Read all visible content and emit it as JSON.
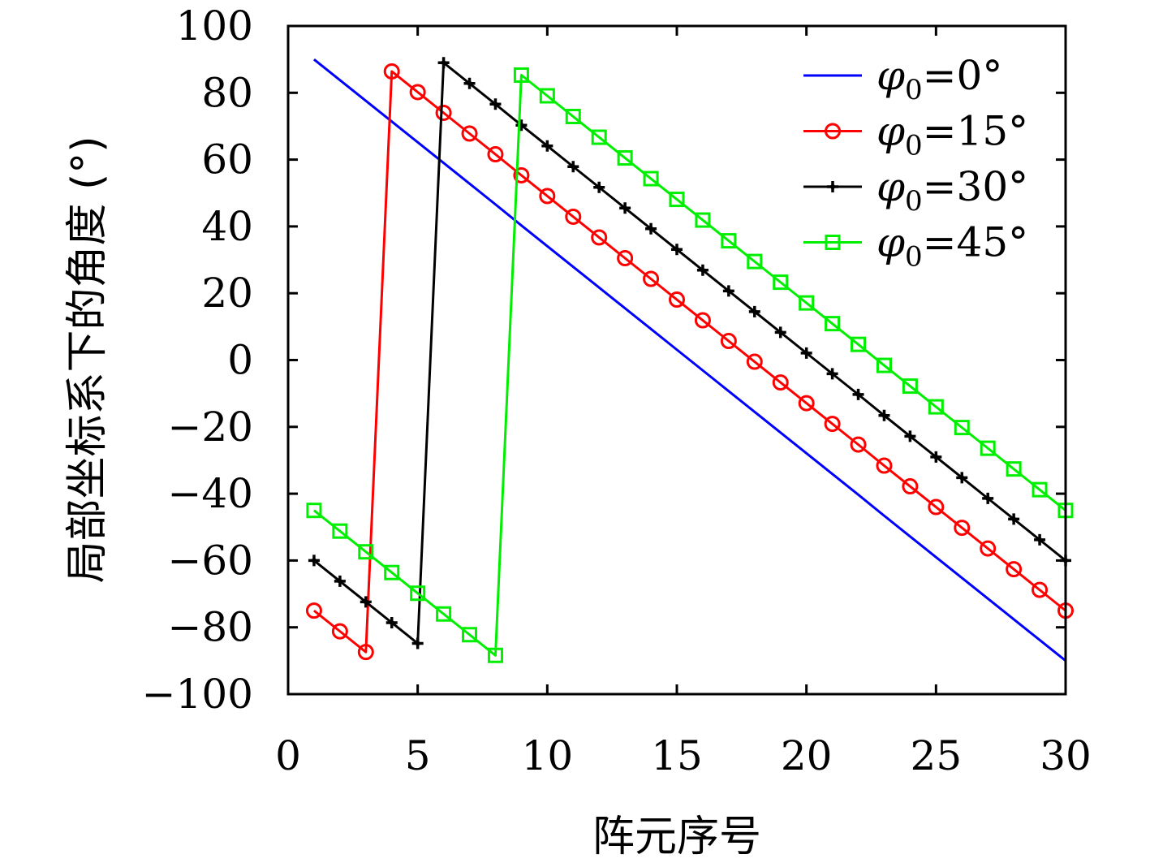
{
  "chart_data": {
    "type": "line",
    "xlabel": "阵元序号",
    "ylabel": "局部坐标系下的角度 (°)",
    "xlim": [
      0,
      30
    ],
    "ylim": [
      -100,
      100
    ],
    "xticks": [
      0,
      5,
      10,
      15,
      20,
      25,
      30
    ],
    "yticks": [
      -100,
      -80,
      -60,
      -40,
      -20,
      0,
      20,
      40,
      60,
      80,
      100
    ],
    "grid": false,
    "legend_position": "top-right",
    "series": [
      {
        "name": "φ0=0°",
        "legend_main": "φ",
        "legend_sub": "0",
        "legend_rest": "=0°",
        "color": "#0000ff",
        "marker": "none",
        "x": [
          1,
          2,
          3,
          4,
          5,
          6,
          7,
          8,
          9,
          10,
          11,
          12,
          13,
          14,
          15,
          16,
          17,
          18,
          19,
          20,
          21,
          22,
          23,
          24,
          25,
          26,
          27,
          28,
          29,
          30
        ],
        "y": [
          90,
          83.8,
          77.6,
          71.4,
          65.2,
          59,
          52.8,
          46.6,
          40.3,
          34.1,
          27.9,
          21.7,
          15.5,
          9.3,
          3.1,
          -3.1,
          -9.3,
          -15.5,
          -21.7,
          -27.9,
          -34.1,
          -40.3,
          -46.6,
          -52.8,
          -59,
          -65.2,
          -71.4,
          -77.6,
          -83.8,
          -90
        ]
      },
      {
        "name": "φ0=15°",
        "legend_main": "φ",
        "legend_sub": "0",
        "legend_rest": "=15°",
        "color": "#ff0000",
        "marker": "circle",
        "x": [
          1,
          2,
          3,
          4,
          5,
          6,
          7,
          8,
          9,
          10,
          11,
          12,
          13,
          14,
          15,
          16,
          17,
          18,
          19,
          20,
          21,
          22,
          23,
          24,
          25,
          26,
          27,
          28,
          29,
          30
        ],
        "y": [
          -75,
          -81.2,
          -87.4,
          86.4,
          80.2,
          74,
          67.8,
          61.6,
          55.3,
          49.1,
          42.9,
          36.7,
          30.5,
          24.3,
          18.1,
          11.9,
          5.7,
          -0.5,
          -6.7,
          -12.9,
          -19.1,
          -25.3,
          -31.6,
          -37.8,
          -44,
          -50.2,
          -56.4,
          -62.6,
          -68.8,
          -75
        ]
      },
      {
        "name": "φ0=30°",
        "legend_main": "φ",
        "legend_sub": "0",
        "legend_rest": "=30°",
        "color": "#000000",
        "marker": "plus",
        "x": [
          1,
          2,
          3,
          4,
          5,
          6,
          7,
          8,
          9,
          10,
          11,
          12,
          13,
          14,
          15,
          16,
          17,
          18,
          19,
          20,
          21,
          22,
          23,
          24,
          25,
          26,
          27,
          28,
          29,
          30
        ],
        "y": [
          -60,
          -66.2,
          -72.4,
          -78.6,
          -84.8,
          89,
          82.8,
          76.6,
          70.3,
          64.1,
          57.9,
          51.7,
          45.5,
          39.3,
          33.1,
          26.9,
          20.7,
          14.5,
          8.3,
          2.1,
          -4.1,
          -10.3,
          -16.6,
          -22.8,
          -29,
          -35.2,
          -41.4,
          -47.6,
          -53.8,
          -60
        ]
      },
      {
        "name": "φ0=45°",
        "legend_main": "φ",
        "legend_sub": "0",
        "legend_rest": "=45°",
        "color": "#00ee00",
        "marker": "square",
        "x": [
          1,
          2,
          3,
          4,
          5,
          6,
          7,
          8,
          9,
          10,
          11,
          12,
          13,
          14,
          15,
          16,
          17,
          18,
          19,
          20,
          21,
          22,
          23,
          24,
          25,
          26,
          27,
          28,
          29,
          30
        ],
        "y": [
          -45,
          -51.2,
          -57.4,
          -63.6,
          -69.8,
          -76,
          -82.2,
          -88.4,
          85.3,
          79.1,
          72.9,
          66.7,
          60.5,
          54.3,
          48.1,
          41.9,
          35.7,
          29.5,
          23.3,
          17.1,
          10.9,
          4.7,
          -1.6,
          -7.8,
          -14,
          -20.2,
          -26.4,
          -32.6,
          -38.8,
          -45
        ]
      }
    ]
  }
}
